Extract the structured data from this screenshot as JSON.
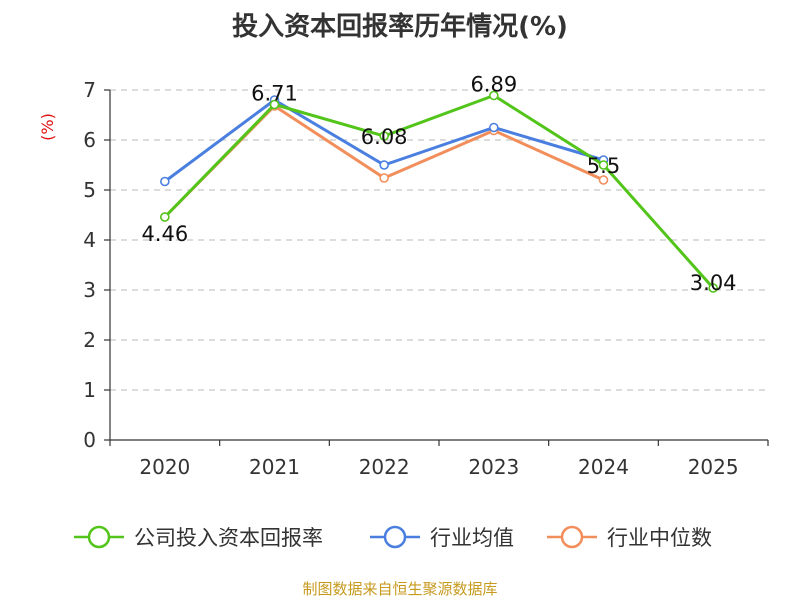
{
  "chart_data": {
    "type": "line",
    "title": "投入资本回报率历年情况(%)",
    "xlabel": "",
    "ylabel": "(%)",
    "categories": [
      "2020",
      "2021",
      "2022",
      "2023",
      "2024",
      "2025"
    ],
    "ylim": [
      0,
      7
    ],
    "yticks": [
      0,
      1,
      2,
      3,
      4,
      5,
      6,
      7
    ],
    "grid": true,
    "legend_position": "bottom",
    "series": [
      {
        "name": "公司投入资本回报率",
        "color": "#52c41a",
        "values": [
          4.46,
          6.71,
          6.08,
          6.89,
          5.5,
          3.04
        ],
        "labels": [
          "4.46",
          "6.71",
          "6.08",
          "6.89",
          "5.5",
          "3.04"
        ]
      },
      {
        "name": "行业均值",
        "color": "#4a7fe0",
        "values": [
          5.17,
          6.8,
          5.5,
          6.25,
          5.6,
          null
        ]
      },
      {
        "name": "行业中位数",
        "color": "#f28e5b",
        "values": [
          4.46,
          6.68,
          5.24,
          6.19,
          5.2,
          null
        ]
      }
    ]
  },
  "footer": {
    "source": "制图数据来自恒生聚源数据库"
  }
}
